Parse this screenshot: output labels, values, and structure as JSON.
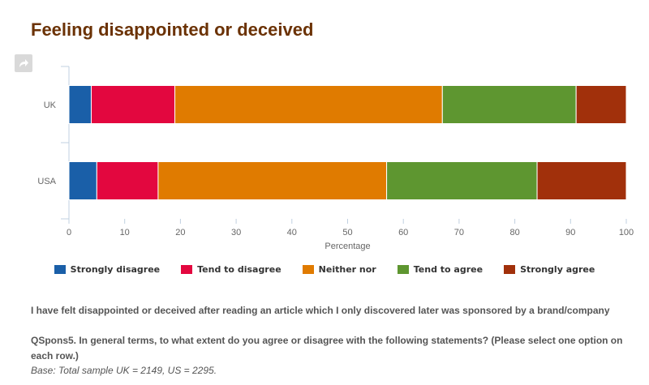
{
  "page": {
    "title": "Feeling disappointed or deceived",
    "statement": "I have felt disappointed or deceived after reading an article which I only discovered later was sponsored by a brand/company",
    "question": "QSpons5. In general terms, to what extent do you agree or disagree with the following statements? (Please select one option on each row.)",
    "base": "Base: Total sample UK = 2149, US = 2295."
  },
  "icons": {
    "share": "share-arrow-icon"
  },
  "chart_data": {
    "type": "bar",
    "orientation": "horizontal",
    "stacked": true,
    "categories": [
      "UK",
      "USA"
    ],
    "series": [
      {
        "name": "Strongly disagree",
        "color": "#1a5fa8",
        "values": [
          4,
          5
        ]
      },
      {
        "name": "Tend to disagree",
        "color": "#e3073f",
        "values": [
          15,
          11
        ]
      },
      {
        "name": "Neither nor",
        "color": "#e07b00",
        "values": [
          48,
          41
        ]
      },
      {
        "name": "Tend to agree",
        "color": "#5e9630",
        "values": [
          24,
          27
        ]
      },
      {
        "name": "Strongly agree",
        "color": "#a1300b",
        "values": [
          9,
          16
        ]
      }
    ],
    "xlabel": "Percentage",
    "xlim": [
      0,
      100
    ],
    "xticks": [
      0,
      10,
      20,
      30,
      40,
      50,
      60,
      70,
      80,
      90,
      100
    ],
    "grid": false,
    "legend_position": "bottom"
  }
}
